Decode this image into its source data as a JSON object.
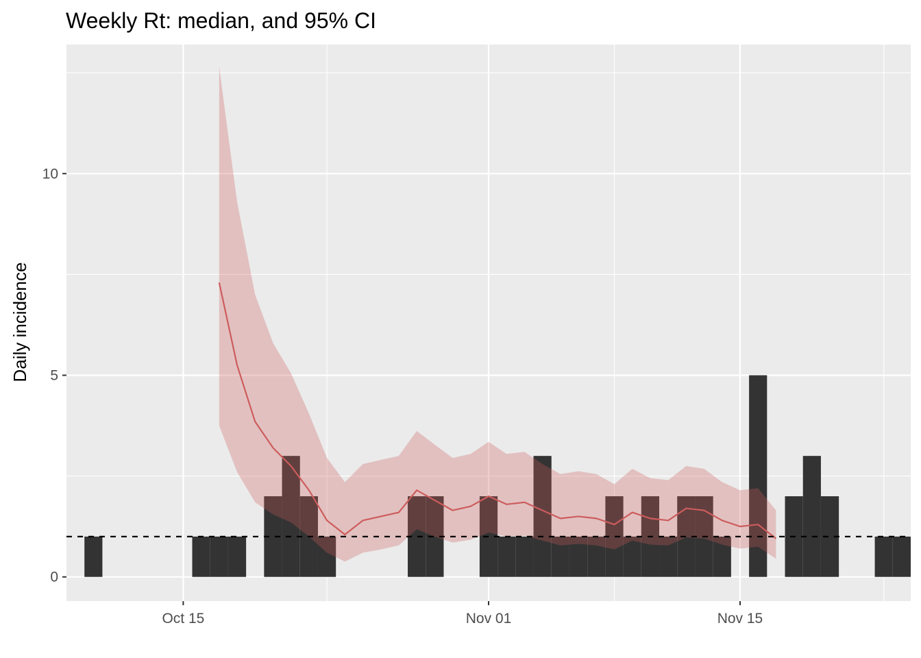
{
  "chart_data": {
    "type": "bar",
    "title": "Weekly Rt: median, and 95% CI",
    "xlabel": "",
    "ylabel": "Daily incidence",
    "x_type": "date",
    "xlim": [
      "2020-10-09",
      "2020-11-24"
    ],
    "ylim": [
      -0.6,
      13.2
    ],
    "x_ticks": [
      {
        "date": "2020-10-15",
        "label": "Oct 15"
      },
      {
        "date": "2020-11-01",
        "label": "Nov 01"
      },
      {
        "date": "2020-11-15",
        "label": "Nov 15"
      }
    ],
    "x_minor_ticks": [
      "2020-10-23",
      "2020-11-08",
      "2020-11-23"
    ],
    "y_ticks": [
      0,
      5,
      10
    ],
    "y_minor_ticks": [
      2.5,
      7.5,
      12.5
    ],
    "grid": true,
    "bar_color": "#333333",
    "incidence": [
      {
        "date": "2020-10-10",
        "count": 1
      },
      {
        "date": "2020-10-16",
        "count": 1
      },
      {
        "date": "2020-10-17",
        "count": 1
      },
      {
        "date": "2020-10-18",
        "count": 1
      },
      {
        "date": "2020-10-20",
        "count": 2
      },
      {
        "date": "2020-10-21",
        "count": 3
      },
      {
        "date": "2020-10-22",
        "count": 2
      },
      {
        "date": "2020-10-23",
        "count": 1
      },
      {
        "date": "2020-10-28",
        "count": 2
      },
      {
        "date": "2020-10-29",
        "count": 2
      },
      {
        "date": "2020-11-01",
        "count": 2
      },
      {
        "date": "2020-11-02",
        "count": 1
      },
      {
        "date": "2020-11-03",
        "count": 1
      },
      {
        "date": "2020-11-04",
        "count": 3
      },
      {
        "date": "2020-11-05",
        "count": 1
      },
      {
        "date": "2020-11-06",
        "count": 1
      },
      {
        "date": "2020-11-07",
        "count": 1
      },
      {
        "date": "2020-11-08",
        "count": 2
      },
      {
        "date": "2020-11-09",
        "count": 1
      },
      {
        "date": "2020-11-10",
        "count": 2
      },
      {
        "date": "2020-11-11",
        "count": 1
      },
      {
        "date": "2020-11-12",
        "count": 2
      },
      {
        "date": "2020-11-13",
        "count": 2
      },
      {
        "date": "2020-11-14",
        "count": 1
      },
      {
        "date": "2020-11-16",
        "count": 5
      },
      {
        "date": "2020-11-18",
        "count": 2
      },
      {
        "date": "2020-11-19",
        "count": 3
      },
      {
        "date": "2020-11-20",
        "count": 2
      },
      {
        "date": "2020-11-23",
        "count": 1
      },
      {
        "date": "2020-11-24",
        "count": 1
      }
    ],
    "rt": {
      "line_color": "#cd5c5c",
      "ribbon_color": "#cd5c5c",
      "ribbon_opacity": 0.3,
      "points": [
        {
          "date": "2020-10-17",
          "median": 7.3,
          "lower": 3.75,
          "upper": 12.65
        },
        {
          "date": "2020-10-18",
          "median": 5.25,
          "lower": 2.6,
          "upper": 9.3
        },
        {
          "date": "2020-10-19",
          "median": 3.85,
          "lower": 1.85,
          "upper": 7.0
        },
        {
          "date": "2020-10-20",
          "median": 3.2,
          "lower": 1.55,
          "upper": 5.8
        },
        {
          "date": "2020-10-21",
          "median": 2.75,
          "lower": 1.35,
          "upper": 5.05
        },
        {
          "date": "2020-10-22",
          "median": 2.15,
          "lower": 1.0,
          "upper": 4.05
        },
        {
          "date": "2020-10-23",
          "median": 1.4,
          "lower": 0.6,
          "upper": 2.95
        },
        {
          "date": "2020-10-24",
          "median": 1.05,
          "lower": 0.38,
          "upper": 2.35
        },
        {
          "date": "2020-10-25",
          "median": 1.4,
          "lower": 0.6,
          "upper": 2.8
        },
        {
          "date": "2020-10-26",
          "median": 1.5,
          "lower": 0.68,
          "upper": 2.9
        },
        {
          "date": "2020-10-27",
          "median": 1.6,
          "lower": 0.78,
          "upper": 3.0
        },
        {
          "date": "2020-10-28",
          "median": 2.15,
          "lower": 1.18,
          "upper": 3.62
        },
        {
          "date": "2020-10-29",
          "median": 1.9,
          "lower": 1.0,
          "upper": 3.28
        },
        {
          "date": "2020-10-30",
          "median": 1.65,
          "lower": 0.85,
          "upper": 2.95
        },
        {
          "date": "2020-10-31",
          "median": 1.75,
          "lower": 0.92,
          "upper": 3.05
        },
        {
          "date": "2020-11-01",
          "median": 2.0,
          "lower": 1.1,
          "upper": 3.35
        },
        {
          "date": "2020-11-02",
          "median": 1.8,
          "lower": 1.0,
          "upper": 3.05
        },
        {
          "date": "2020-11-03",
          "median": 1.85,
          "lower": 1.02,
          "upper": 3.1
        },
        {
          "date": "2020-11-04",
          "median": 1.65,
          "lower": 0.9,
          "upper": 2.8
        },
        {
          "date": "2020-11-05",
          "median": 1.45,
          "lower": 0.78,
          "upper": 2.55
        },
        {
          "date": "2020-11-06",
          "median": 1.5,
          "lower": 0.82,
          "upper": 2.62
        },
        {
          "date": "2020-11-07",
          "median": 1.45,
          "lower": 0.78,
          "upper": 2.55
        },
        {
          "date": "2020-11-08",
          "median": 1.3,
          "lower": 0.68,
          "upper": 2.3
        },
        {
          "date": "2020-11-09",
          "median": 1.6,
          "lower": 0.9,
          "upper": 2.68
        },
        {
          "date": "2020-11-10",
          "median": 1.45,
          "lower": 0.8,
          "upper": 2.45
        },
        {
          "date": "2020-11-11",
          "median": 1.4,
          "lower": 0.78,
          "upper": 2.4
        },
        {
          "date": "2020-11-12",
          "median": 1.7,
          "lower": 0.98,
          "upper": 2.75
        },
        {
          "date": "2020-11-13",
          "median": 1.65,
          "lower": 0.95,
          "upper": 2.68
        },
        {
          "date": "2020-11-14",
          "median": 1.4,
          "lower": 0.8,
          "upper": 2.35
        },
        {
          "date": "2020-11-15",
          "median": 1.25,
          "lower": 0.7,
          "upper": 2.15
        },
        {
          "date": "2020-11-16",
          "median": 1.3,
          "lower": 0.75,
          "upper": 2.2
        },
        {
          "date": "2020-11-17",
          "median": 0.95,
          "lower": 0.45,
          "upper": 1.65
        }
      ]
    },
    "reference_line": {
      "y": 1,
      "style": "dashed",
      "color": "#000000"
    }
  }
}
